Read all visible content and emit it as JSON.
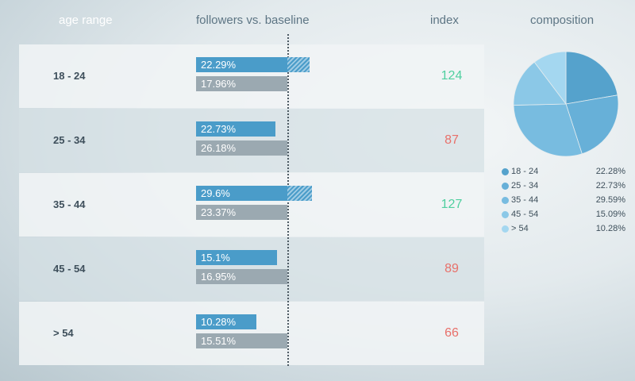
{
  "headers": {
    "age_range": "age range",
    "followers": "followers vs. baseline",
    "index": "index",
    "composition": "composition"
  },
  "colors": {
    "follower_bar": "#4a9cc9",
    "baseline_bar": "#9ba9b1",
    "index_above": "#4fcf9f",
    "index_below": "#e8706a"
  },
  "chart_data": [
    {
      "type": "bar",
      "categories": [
        "18 - 24",
        "25 - 34",
        "35 - 44",
        "45 - 54",
        "> 54"
      ],
      "series": [
        {
          "values": [
            22.29,
            22.73,
            29.6,
            15.1,
            10.28
          ]
        },
        {
          "values": [
            17.96,
            26.18,
            23.37,
            16.95,
            15.51
          ]
        }
      ],
      "labels": {
        "followers": [
          "22.29%",
          "22.73%",
          "29.6%",
          "15.1%",
          "10.28%"
        ],
        "baseline": [
          "17.96%",
          "26.18%",
          "23.37%",
          "16.95%",
          "15.51%"
        ]
      },
      "index": [
        124,
        87,
        127,
        89,
        66
      ]
    },
    {
      "type": "pie",
      "categories": [
        "18 - 24",
        "25 - 34",
        "35 - 44",
        "45 - 54",
        "> 54"
      ],
      "values": [
        22.28,
        22.73,
        29.59,
        15.09,
        10.28
      ],
      "value_labels": [
        "22.28%",
        "22.73%",
        "29.59%",
        "15.09%",
        "10.28%"
      ],
      "colors": [
        "#55a2cc",
        "#67b0d8",
        "#78bce0",
        "#8bc8e7",
        "#a4d7f0"
      ]
    }
  ]
}
